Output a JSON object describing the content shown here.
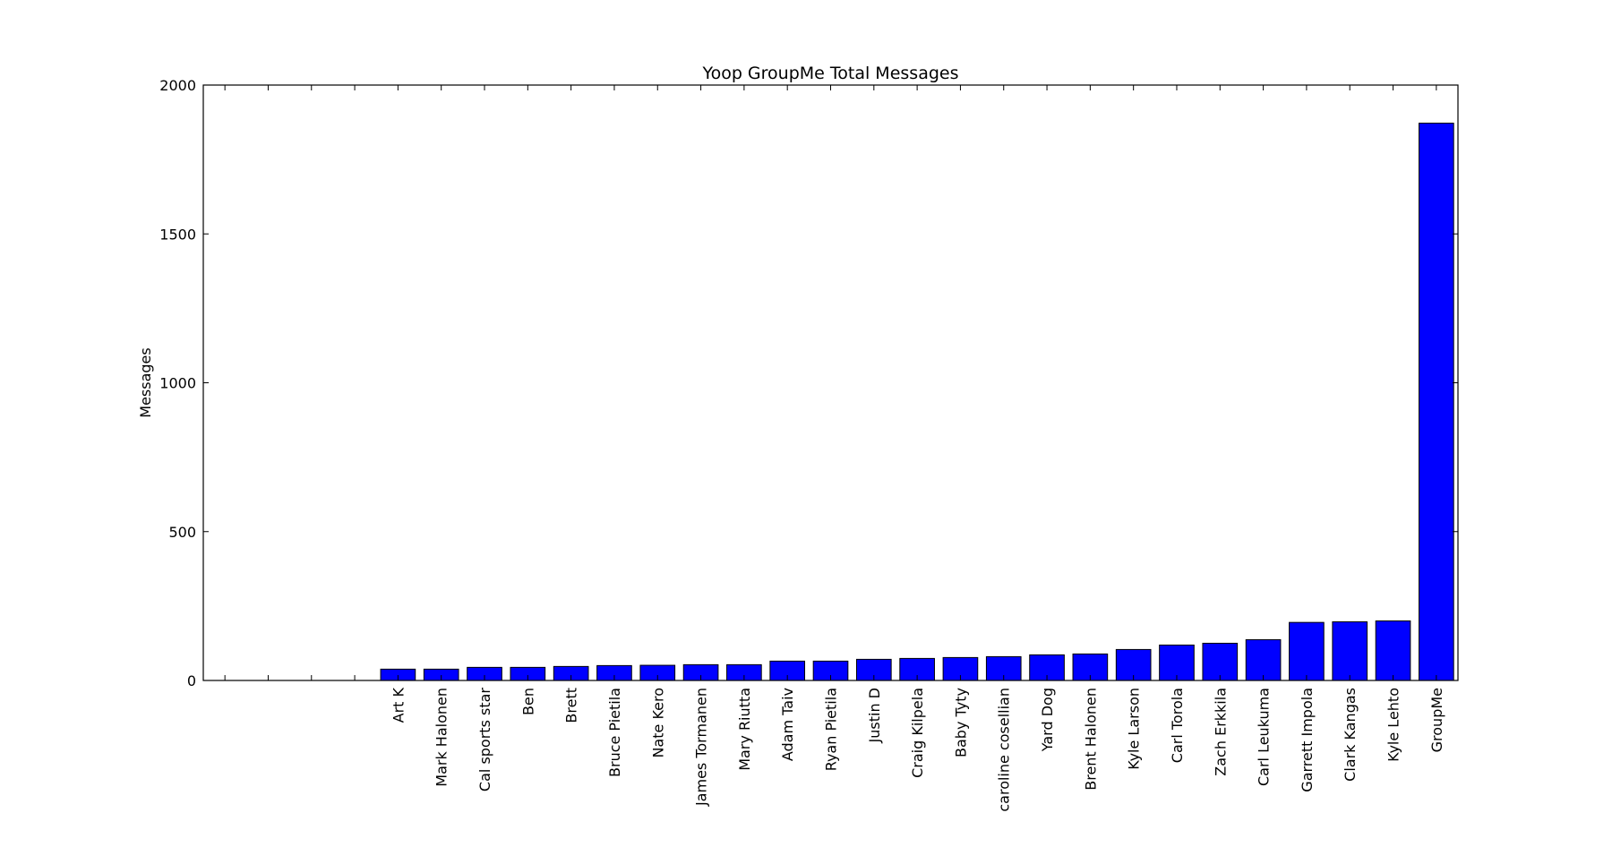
{
  "chart_data": {
    "type": "bar",
    "title": "Yoop GroupMe Total Messages",
    "xlabel": "",
    "ylabel": "Messages",
    "ylim": [
      0,
      2000
    ],
    "yticks": [
      0,
      500,
      1000,
      1500,
      2000
    ],
    "ytick_labels": [
      "0",
      "500",
      "1000",
      "1500",
      "2000"
    ],
    "categories": [
      "Art K",
      "Mark Halonen",
      "Cal sports star",
      "Ben",
      "Brett",
      "Bruce Pietila",
      "Nate Kero",
      "James Tormanen",
      "Mary Riutta",
      "Adam Taiv",
      "Ryan Pietila",
      "Justin D",
      "Craig Kilpela",
      "Baby Tyty",
      "caroline cosellian",
      "Yard Dog",
      "Brent Halonen",
      "Kyle Larson",
      "Carl Torola",
      "Zach Erkkila",
      "Carl Leukuma",
      "Garrett Impola",
      "Clark Kangas",
      "Kyle Lehto",
      "GroupMe"
    ],
    "values": [
      38,
      38,
      44,
      44,
      47,
      50,
      51,
      53,
      53,
      65,
      65,
      71,
      74,
      77,
      80,
      86,
      89,
      104,
      119,
      125,
      137,
      195,
      197,
      200,
      1872
    ],
    "leading_empty_slots": 4,
    "bar_color": "#0000ff",
    "edge_color": "#000000",
    "grid": false,
    "legend": "none",
    "xtick_rotation": "vertical"
  }
}
